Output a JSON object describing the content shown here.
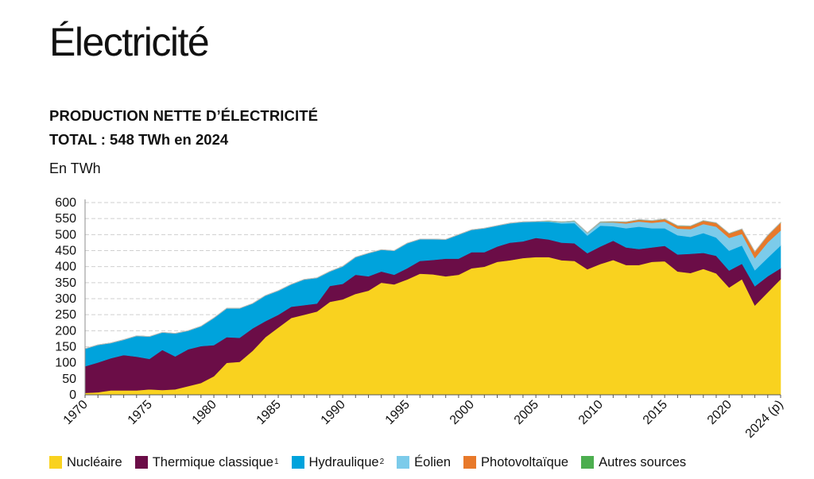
{
  "header": {
    "title": "Électricité",
    "subtitle": "PRODUCTION NETTE D’ÉLECTRICITÉ",
    "total": "TOTAL : 548 TWh en 2024",
    "unit": "En TWh"
  },
  "colors": {
    "title_accent": "#3e86c6",
    "nucleaire": "#f9d21f",
    "thermique": "#6b0d47",
    "hydraulique": "#00a3dc",
    "eolien": "#7ccbea",
    "photovoltaique": "#e8792a",
    "autres": "#4cae4f",
    "grid": "#cfcfcf",
    "total_line": "#bdbdbd"
  },
  "legend": [
    {
      "key": "nucleaire",
      "label": "Nucléaire",
      "sup": ""
    },
    {
      "key": "thermique",
      "label": "Thermique classique",
      "sup": "1"
    },
    {
      "key": "hydraulique",
      "label": "Hydraulique",
      "sup": "2"
    },
    {
      "key": "eolien",
      "label": "Éolien",
      "sup": ""
    },
    {
      "key": "photovoltaique",
      "label": "Photovoltaïque",
      "sup": ""
    },
    {
      "key": "autres",
      "label": "Autres sources",
      "sup": ""
    }
  ],
  "chart_data": {
    "type": "area",
    "stacked": true,
    "title": "PRODUCTION NETTE D’ÉLECTRICITÉ",
    "ylabel": "En TWh",
    "ylim": [
      0,
      600
    ],
    "yticks": [
      0,
      50,
      100,
      150,
      200,
      250,
      300,
      350,
      400,
      450,
      500,
      550,
      600
    ],
    "grid": true,
    "x": [
      1970,
      1971,
      1972,
      1973,
      1974,
      1975,
      1976,
      1977,
      1978,
      1979,
      1980,
      1981,
      1982,
      1983,
      1984,
      1985,
      1986,
      1987,
      1988,
      1989,
      1990,
      1991,
      1992,
      1993,
      1994,
      1995,
      1996,
      1997,
      1998,
      1999,
      2000,
      2001,
      2002,
      2003,
      2004,
      2005,
      2006,
      2007,
      2008,
      2009,
      2010,
      2011,
      2012,
      2013,
      2014,
      2015,
      2016,
      2017,
      2018,
      2019,
      2020,
      2021,
      2022,
      2023,
      2024
    ],
    "xticks": [
      {
        "value": 1970,
        "label": "1970"
      },
      {
        "value": 1975,
        "label": "1975"
      },
      {
        "value": 1980,
        "label": "1980"
      },
      {
        "value": 1985,
        "label": "1985"
      },
      {
        "value": 1990,
        "label": "1990"
      },
      {
        "value": 1995,
        "label": "1995"
      },
      {
        "value": 2000,
        "label": "2000"
      },
      {
        "value": 2005,
        "label": "2005"
      },
      {
        "value": 2010,
        "label": "2010"
      },
      {
        "value": 2015,
        "label": "2015"
      },
      {
        "value": 2020,
        "label": "2020"
      },
      {
        "value": 2024,
        "label": "2024 (p)"
      }
    ],
    "series": [
      {
        "key": "nucleaire",
        "name": "Nucléaire",
        "values": [
          6,
          8,
          14,
          14,
          14,
          17,
          15,
          17,
          27,
          37,
          58,
          100,
          103,
          137,
          180,
          210,
          240,
          250,
          260,
          290,
          298,
          315,
          325,
          350,
          345,
          360,
          378,
          376,
          370,
          375,
          395,
          400,
          415,
          420,
          427,
          430,
          430,
          420,
          418,
          392,
          408,
          421,
          405,
          405,
          415,
          417,
          385,
          380,
          393,
          379,
          335,
          361,
          279,
          320,
          361
        ]
      },
      {
        "key": "thermique",
        "name": "Thermique classique",
        "values": [
          83,
          93,
          100,
          110,
          105,
          95,
          125,
          103,
          115,
          115,
          97,
          80,
          75,
          70,
          50,
          40,
          35,
          30,
          25,
          50,
          48,
          60,
          45,
          35,
          30,
          35,
          40,
          45,
          55,
          50,
          50,
          45,
          48,
          55,
          52,
          60,
          55,
          55,
          55,
          50,
          55,
          60,
          55,
          50,
          45,
          48,
          53,
          60,
          50,
          55,
          53,
          48,
          60,
          50,
          34
        ]
      },
      {
        "key": "hydraulique",
        "name": "Hydraulique",
        "values": [
          55,
          55,
          48,
          48,
          65,
          70,
          55,
          72,
          58,
          62,
          85,
          90,
          92,
          78,
          80,
          75,
          70,
          80,
          80,
          45,
          55,
          55,
          72,
          68,
          75,
          78,
          68,
          65,
          60,
          75,
          70,
          75,
          65,
          60,
          60,
          50,
          55,
          60,
          63,
          55,
          65,
          45,
          60,
          70,
          60,
          55,
          60,
          53,
          62,
          57,
          62,
          57,
          50,
          58,
          71
        ]
      },
      {
        "key": "eolien",
        "name": "Éolien",
        "values": [
          0,
          0,
          0,
          0,
          0,
          0,
          0,
          0,
          0,
          0,
          0,
          0,
          0,
          0,
          0,
          0,
          0,
          0,
          0,
          0,
          0,
          0,
          0,
          0,
          0,
          0,
          0,
          0,
          0,
          0,
          0,
          0,
          0,
          1,
          1,
          1,
          2,
          4,
          6,
          8,
          10,
          12,
          15,
          16,
          17,
          21,
          21,
          24,
          28,
          34,
          40,
          36,
          38,
          48,
          47
        ]
      },
      {
        "key": "photovoltaique",
        "name": "Photovoltaïque",
        "values": [
          0,
          0,
          0,
          0,
          0,
          0,
          0,
          0,
          0,
          0,
          0,
          0,
          0,
          0,
          0,
          0,
          0,
          0,
          0,
          0,
          0,
          0,
          0,
          0,
          0,
          0,
          0,
          0,
          0,
          0,
          0,
          0,
          0,
          0,
          0,
          0,
          0,
          0,
          0,
          0,
          1,
          2,
          4,
          5,
          6,
          7,
          8,
          9,
          10,
          11,
          13,
          15,
          19,
          21,
          24
        ]
      },
      {
        "key": "autres",
        "name": "Autres sources",
        "values": [
          0,
          0,
          0,
          0,
          0,
          0,
          0,
          0,
          0,
          0,
          0,
          0,
          0,
          0,
          0,
          0,
          0,
          0,
          0,
          0,
          0,
          0,
          0,
          0,
          0,
          0,
          0,
          0,
          0,
          0,
          0,
          0,
          0,
          0,
          0,
          0,
          1,
          1,
          1,
          1,
          1,
          1,
          1,
          1,
          1,
          1,
          1,
          1,
          1,
          1,
          1,
          1,
          1,
          1,
          1
        ]
      }
    ]
  }
}
